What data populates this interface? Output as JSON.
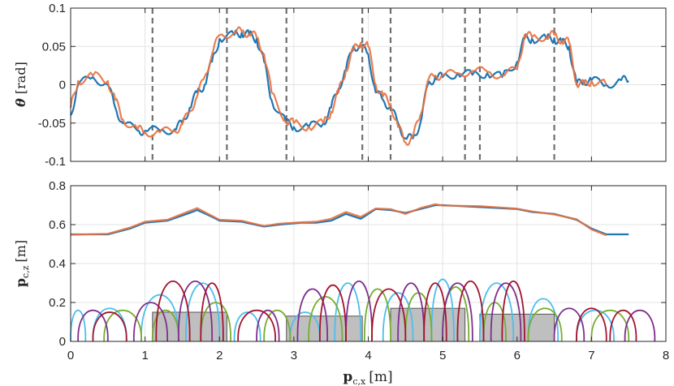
{
  "chart_data": [
    {
      "type": "line",
      "ylabel": "θ [rad]",
      "ylabel_symbol": "θ",
      "ylabel_unit": "[rad]",
      "xlim": [
        0,
        8
      ],
      "ylim": [
        -0.1,
        0.1
      ],
      "yticks": [
        -0.1,
        -0.05,
        0,
        0.05,
        0.1
      ],
      "ytick_labels": [
        "-0.1",
        "-0.05",
        "0",
        "0.05",
        "0.1"
      ],
      "grid": true,
      "vertical_dashed_lines_x": [
        1.1,
        2.1,
        2.9,
        3.92,
        4.3,
        5.3,
        5.5,
        6.5
      ],
      "series": [
        {
          "color": "#1f77b4",
          "x": [
            0.0,
            0.1,
            0.3,
            0.5,
            0.6,
            0.7,
            0.9,
            1.0,
            1.2,
            1.4,
            1.5,
            1.6,
            1.7,
            1.8,
            1.9,
            2.0,
            2.2,
            2.3,
            2.4,
            2.5,
            2.6,
            2.7,
            2.9,
            3.0,
            3.2,
            3.4,
            3.5,
            3.6,
            3.7,
            3.8,
            3.9,
            4.0,
            4.1,
            4.2,
            4.3,
            4.4,
            4.5,
            4.6,
            4.7,
            4.8,
            4.9,
            5.0,
            5.2,
            5.4,
            5.6,
            5.8,
            6.0,
            6.1,
            6.2,
            6.4,
            6.5,
            6.6,
            6.7,
            6.8,
            6.9,
            7.0,
            7.2,
            7.4,
            7.5
          ],
          "y": [
            -0.04,
            0.0,
            0.01,
            0.0,
            -0.03,
            -0.05,
            -0.06,
            -0.06,
            -0.06,
            -0.058,
            -0.05,
            -0.03,
            -0.01,
            0.0,
            0.03,
            0.06,
            0.065,
            0.068,
            0.065,
            0.06,
            0.03,
            -0.02,
            -0.05,
            -0.055,
            -0.055,
            -0.05,
            -0.03,
            -0.005,
            0.02,
            0.05,
            0.05,
            0.04,
            -0.01,
            -0.02,
            -0.03,
            -0.05,
            -0.07,
            -0.07,
            -0.05,
            0.0,
            0.01,
            0.01,
            0.015,
            0.013,
            0.015,
            0.01,
            0.03,
            0.06,
            0.06,
            0.06,
            0.06,
            0.055,
            0.05,
            0.0,
            0.005,
            0.006,
            0.0,
            0.006,
            0.005
          ]
        },
        {
          "color": "#e8703e",
          "x": [
            0.0,
            0.1,
            0.3,
            0.5,
            0.6,
            0.7,
            0.9,
            1.0,
            1.2,
            1.4,
            1.5,
            1.6,
            1.7,
            1.8,
            1.9,
            2.0,
            2.2,
            2.3,
            2.4,
            2.5,
            2.6,
            2.7,
            2.9,
            3.0,
            3.2,
            3.4,
            3.5,
            3.6,
            3.7,
            3.8,
            3.9,
            4.0,
            4.1,
            4.2,
            4.3,
            4.4,
            4.5,
            4.6,
            4.7,
            4.8,
            4.9,
            5.0,
            5.2,
            5.4,
            5.6,
            5.8,
            6.0,
            6.1,
            6.2,
            6.4,
            6.5,
            6.6,
            6.7,
            6.8,
            6.9,
            7.0,
            7.2
          ],
          "y": [
            -0.03,
            0.005,
            0.012,
            0.005,
            -0.02,
            -0.045,
            -0.058,
            -0.062,
            -0.062,
            -0.06,
            -0.052,
            -0.035,
            -0.015,
            0.01,
            0.04,
            0.065,
            0.068,
            0.07,
            0.067,
            0.062,
            0.04,
            -0.01,
            -0.048,
            -0.05,
            -0.055,
            -0.05,
            -0.035,
            -0.01,
            0.02,
            0.045,
            0.055,
            0.05,
            0.0,
            -0.015,
            -0.025,
            -0.055,
            -0.075,
            -0.068,
            -0.04,
            0.005,
            0.012,
            0.012,
            0.015,
            0.018,
            0.017,
            0.012,
            0.02,
            0.065,
            0.062,
            0.063,
            0.065,
            0.058,
            0.055,
            0.002,
            0.0,
            0.005,
            0.0
          ]
        }
      ]
    },
    {
      "type": "line",
      "ylabel": "p c,z [m]",
      "ylabel_symbol": "p",
      "ylabel_sub": "c,z",
      "ylabel_unit": "[m]",
      "xlabel": "p c,x [m]",
      "xlabel_symbol": "p",
      "xlabel_sub": "c,x",
      "xlabel_unit": "[m]",
      "xlim": [
        0,
        8
      ],
      "ylim": [
        0,
        0.8
      ],
      "xticks": [
        0,
        1,
        2,
        3,
        4,
        5,
        6,
        7,
        8
      ],
      "xtick_labels": [
        "0",
        "1",
        "2",
        "3",
        "4",
        "5",
        "6",
        "7",
        "8"
      ],
      "yticks": [
        0,
        0.2,
        0.4,
        0.6,
        0.8
      ],
      "ytick_labels": [
        "0",
        "0.2",
        "0.4",
        "0.6",
        "0.8"
      ],
      "grid": true,
      "series": [
        {
          "color": "#1f77b4",
          "x": [
            0.0,
            0.5,
            0.8,
            1.0,
            1.3,
            1.6,
            1.7,
            1.9,
            2.0,
            2.3,
            2.6,
            2.8,
            3.1,
            3.3,
            3.5,
            3.7,
            3.9,
            4.1,
            4.3,
            4.5,
            4.7,
            4.9,
            5.0,
            5.5,
            6.0,
            6.2,
            6.5,
            6.8,
            7.0,
            7.2,
            7.5
          ],
          "y": [
            0.55,
            0.55,
            0.58,
            0.61,
            0.62,
            0.66,
            0.675,
            0.64,
            0.62,
            0.615,
            0.59,
            0.6,
            0.61,
            0.61,
            0.62,
            0.655,
            0.63,
            0.68,
            0.675,
            0.66,
            0.68,
            0.7,
            0.7,
            0.69,
            0.68,
            0.665,
            0.655,
            0.625,
            0.58,
            0.55,
            0.55
          ]
        },
        {
          "color": "#e8703e",
          "x": [
            0.0,
            0.5,
            0.8,
            1.0,
            1.3,
            1.6,
            1.7,
            1.9,
            2.0,
            2.3,
            2.6,
            2.8,
            3.1,
            3.3,
            3.5,
            3.7,
            3.9,
            4.1,
            4.3,
            4.5,
            4.7,
            4.9,
            5.0,
            5.5,
            6.0,
            6.2,
            6.5,
            6.8,
            7.0,
            7.2
          ],
          "y": [
            0.548,
            0.553,
            0.585,
            0.615,
            0.625,
            0.67,
            0.685,
            0.645,
            0.625,
            0.62,
            0.593,
            0.605,
            0.612,
            0.615,
            0.63,
            0.665,
            0.64,
            0.683,
            0.68,
            0.655,
            0.685,
            0.705,
            0.698,
            0.695,
            0.682,
            0.668,
            0.652,
            0.628,
            0.575,
            0.545
          ]
        }
      ],
      "footstep_series": [
        {
          "color": "#4dbeee",
          "steps": [
            [
              0.0,
              0.2,
              0.16
            ],
            [
              0.3,
              0.75,
              0.17
            ],
            [
              0.95,
              1.45,
              0.24
            ],
            [
              1.55,
              2.0,
              0.3
            ],
            [
              2.2,
              2.55,
              0.15
            ],
            [
              2.95,
              3.35,
              0.15
            ],
            [
              3.55,
              3.9,
              0.3
            ],
            [
              4.2,
              4.6,
              0.25
            ],
            [
              4.85,
              5.15,
              0.32
            ],
            [
              5.5,
              5.95,
              0.3
            ],
            [
              6.15,
              6.55,
              0.22
            ],
            [
              6.8,
              7.3,
              0.16
            ]
          ]
        },
        {
          "color": "#77ac30",
          "steps": [
            [
              0.45,
              0.95,
              0.16
            ],
            [
              1.1,
              1.45,
              0.16
            ],
            [
              1.75,
              2.15,
              0.2
            ],
            [
              2.6,
              2.95,
              0.16
            ],
            [
              3.2,
              3.65,
              0.23
            ],
            [
              3.95,
              4.3,
              0.27
            ],
            [
              4.5,
              4.85,
              0.25
            ],
            [
              5.0,
              5.35,
              0.28
            ],
            [
              5.55,
              5.85,
              0.2
            ],
            [
              6.15,
              6.6,
              0.17
            ],
            [
              7.0,
              7.5,
              0.16
            ]
          ]
        },
        {
          "color": "#7e2f8e",
          "steps": [
            [
              0.1,
              0.5,
              0.16
            ],
            [
              0.85,
              1.3,
              0.2
            ],
            [
              1.45,
              1.9,
              0.31
            ],
            [
              2.5,
              2.8,
              0.16
            ],
            [
              3.05,
              3.45,
              0.27
            ],
            [
              3.7,
              4.05,
              0.31
            ],
            [
              4.4,
              4.75,
              0.3
            ],
            [
              5.0,
              5.4,
              0.3
            ],
            [
              5.65,
              6.05,
              0.3
            ],
            [
              6.5,
              6.9,
              0.17
            ],
            [
              7.45,
              7.85,
              0.16
            ]
          ]
        },
        {
          "color": "#a2142f",
          "steps": [
            [
              0.3,
              0.75,
              0.15
            ],
            [
              1.15,
              1.6,
              0.31
            ],
            [
              1.75,
              2.05,
              0.3
            ],
            [
              2.25,
              2.75,
              0.16
            ],
            [
              3.35,
              3.7,
              0.29
            ],
            [
              4.05,
              4.5,
              0.27
            ],
            [
              4.75,
              5.05,
              0.3
            ],
            [
              5.2,
              5.55,
              0.31
            ],
            [
              5.8,
              6.1,
              0.31
            ],
            [
              6.8,
              7.2,
              0.17
            ],
            [
              7.25,
              7.6,
              0.16
            ]
          ]
        }
      ],
      "obstacles": [
        {
          "x_start": 1.1,
          "x_end": 2.1,
          "height": 0.15
        },
        {
          "x_start": 2.9,
          "x_end": 3.92,
          "height": 0.13
        },
        {
          "x_start": 4.3,
          "x_end": 5.3,
          "height": 0.17
        },
        {
          "x_start": 5.5,
          "x_end": 6.5,
          "height": 0.14
        }
      ]
    }
  ]
}
